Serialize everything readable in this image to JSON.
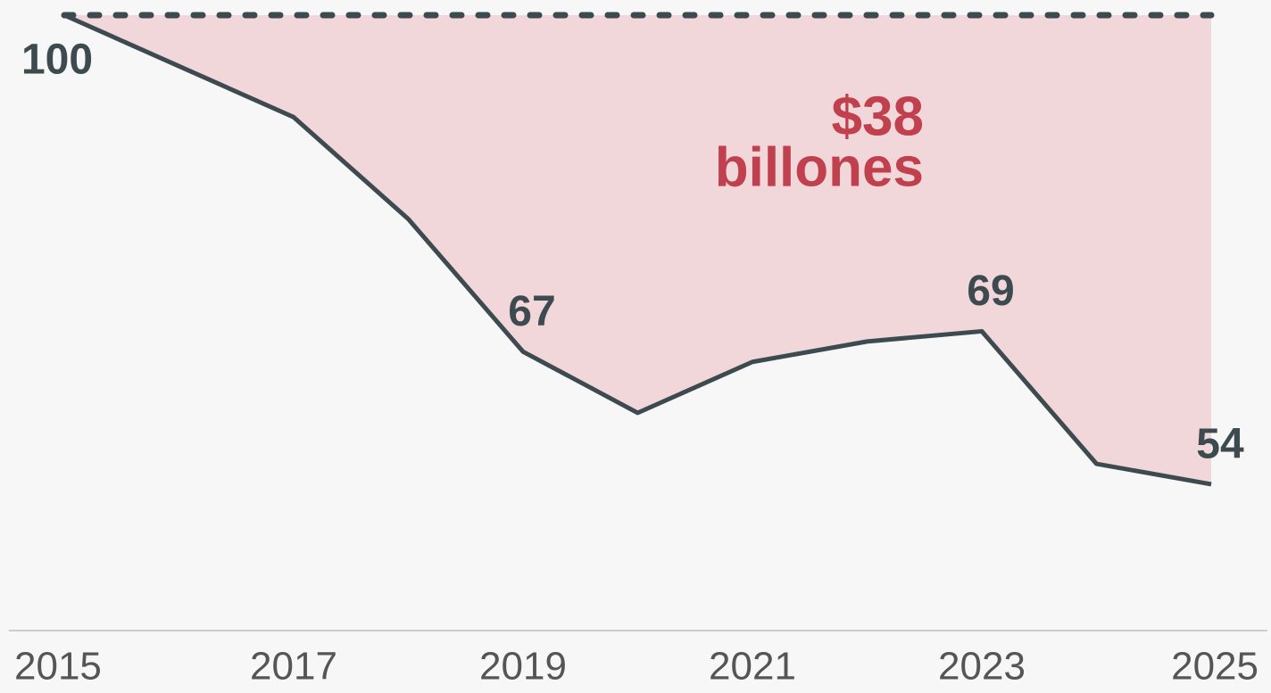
{
  "chart_data": {
    "type": "line",
    "x": [
      2015,
      2016,
      2017,
      2018,
      2019,
      2020,
      2021,
      2022,
      2023,
      2024,
      2025
    ],
    "values": [
      100,
      95,
      90,
      80,
      67,
      61,
      66,
      68,
      69,
      56,
      54
    ],
    "value_labels": [
      "100",
      null,
      null,
      null,
      "67",
      null,
      null,
      null,
      "69",
      null,
      "54"
    ],
    "reference": 100,
    "color": "#3d4a4f",
    "area_color": "#f2d7da",
    "annotation": [
      "$38",
      "billones"
    ],
    "annotation_color": "#c0404e",
    "xlim": [
      2015,
      2025
    ],
    "xticks": [
      2015,
      2017,
      2019,
      2021,
      2023,
      2025
    ],
    "ylim": [
      40,
      100
    ]
  }
}
